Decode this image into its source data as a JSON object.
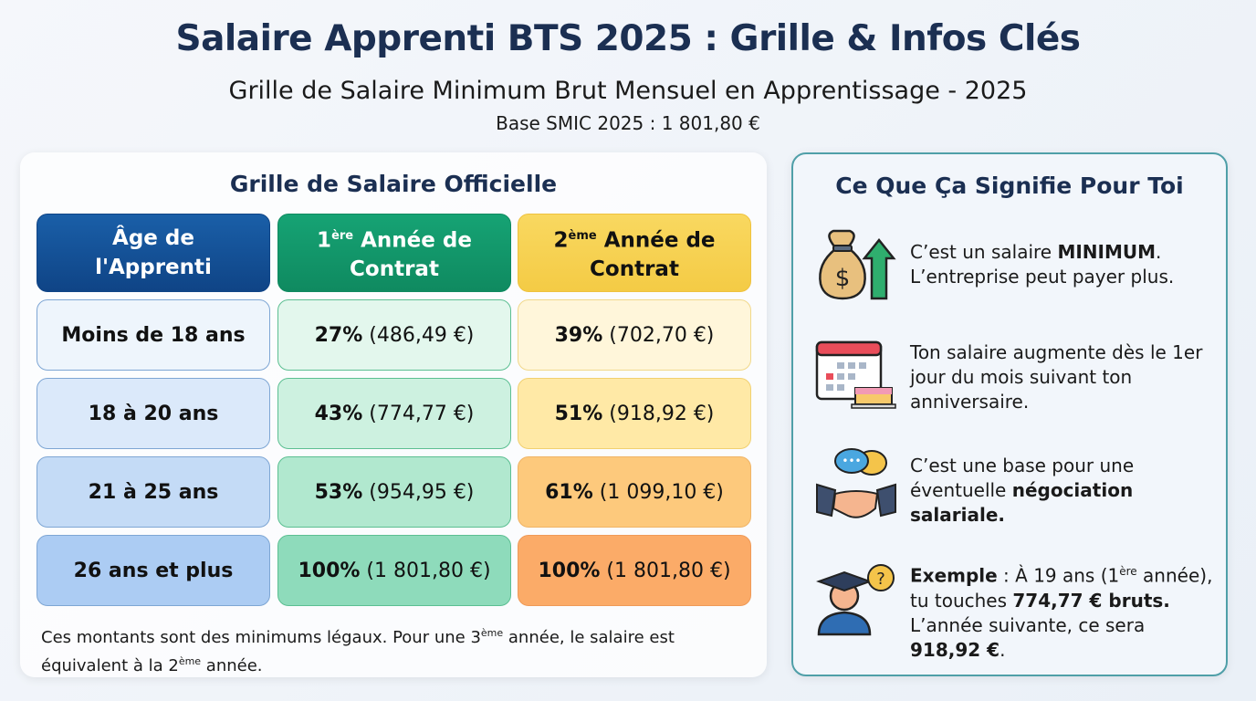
{
  "header": {
    "title": "Salaire Apprenti BTS 2025 : Grille & Infos Clés",
    "subtitle": "Grille de Salaire Minimum Brut Mensuel en Apprentissage - 2025",
    "base": "Base SMIC 2025 : 1 801,80 €"
  },
  "grid": {
    "heading": "Grille de Salaire Officielle",
    "columns": [
      {
        "line1": "Âge de",
        "line2": "l'Apprenti",
        "color": "#134f96"
      },
      {
        "sup_num": "1",
        "sup": "ère",
        "line1": " Année de",
        "line2": "Contrat",
        "color": "#12966a"
      },
      {
        "sup_num": "2",
        "sup": "ème",
        "line1": " Année de",
        "line2": "Contrat",
        "color": "#f7d154"
      }
    ],
    "rows": [
      {
        "age": "Moins de 18 ans",
        "y1_pct": "27%",
        "y1_amt": " (486,49 €)",
        "y2_pct": "39%",
        "y2_amt": " (702,70 €)"
      },
      {
        "age": "18 à 20 ans",
        "y1_pct": "43%",
        "y1_amt": " (774,77 €)",
        "y2_pct": "51%",
        "y2_amt": " (918,92 €)"
      },
      {
        "age": "21 à 25 ans",
        "y1_pct": "53%",
        "y1_amt": " (954,95 €)",
        "y2_pct": "61%",
        "y2_amt": " (1 099,10 €)"
      },
      {
        "age": "26 ans et plus",
        "y1_pct": "100%",
        "y1_amt": " (1 801,80 €)",
        "y2_pct": "100%",
        "y2_amt": " (1 801,80 €)"
      }
    ],
    "note": {
      "a": "Ces montants sont des minimums légaux. Pour une 3",
      "sup1": "ème",
      "b": " année, le salaire est équivalent à la 2",
      "sup2": "ème",
      "c": " année."
    }
  },
  "info": {
    "heading": "Ce Que Ça Signifie Pour Toi",
    "items": [
      {
        "icon": "money-bag-arrow-up-icon",
        "a": "C’est un salaire ",
        "b": "MINIMUM",
        "c": ". L’entreprise peut payer plus."
      },
      {
        "icon": "calendar-birthday-cake-icon",
        "a": "Ton salaire augmente dès le 1er jour du mois suivant ton anniversaire."
      },
      {
        "icon": "handshake-chat-icon",
        "a": "C’est une base pour une éventuelle ",
        "b": "négociation salariale."
      },
      {
        "icon": "graduate-question-icon",
        "b1": "Exemple",
        "a1": " : À 19 ans (1",
        "sup": "ère",
        "a2": " année), tu touches ",
        "b2": "774,77 € bruts.",
        "a3": " L’année suivante, ce sera ",
        "b3": "918,92 €",
        "a4": "."
      }
    ]
  }
}
